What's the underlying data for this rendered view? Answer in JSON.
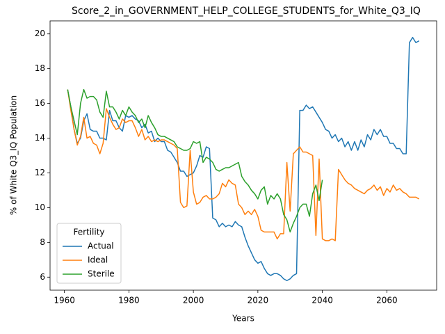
{
  "chart_data": {
    "type": "line",
    "title": "Score_2_in_GOVERNMENT_HELP_COLLEGE_STUDENTS_for_White_Q3_IQ",
    "xlabel": "Years",
    "ylabel": "% of White Q3_IQ Population",
    "x": [
      1961,
      1962,
      1963,
      1964,
      1965,
      1966,
      1967,
      1968,
      1969,
      1970,
      1971,
      1972,
      1973,
      1974,
      1975,
      1976,
      1977,
      1978,
      1979,
      1980,
      1981,
      1982,
      1983,
      1984,
      1985,
      1986,
      1987,
      1988,
      1989,
      1990,
      1991,
      1992,
      1993,
      1994,
      1995,
      1996,
      1997,
      1998,
      1999,
      2000,
      2001,
      2002,
      2003,
      2004,
      2005,
      2006,
      2007,
      2008,
      2009,
      2010,
      2011,
      2012,
      2013,
      2014,
      2015,
      2016,
      2017,
      2018,
      2019,
      2020,
      2021,
      2022,
      2023,
      2024,
      2025,
      2026,
      2027,
      2028,
      2029,
      2030,
      2031,
      2032,
      2033,
      2034,
      2035,
      2036,
      2037,
      2038,
      2039,
      2040,
      2041,
      2042,
      2043,
      2044,
      2045,
      2046,
      2047,
      2048,
      2049,
      2050,
      2051,
      2052,
      2053,
      2054,
      2055,
      2056,
      2057,
      2058,
      2059,
      2060,
      2061,
      2062,
      2063,
      2064,
      2065,
      2066,
      2067,
      2068,
      2069,
      2070
    ],
    "series": [
      {
        "name": "Actual",
        "color": "#1f77b4",
        "values": [
          16.8,
          15.8,
          14.5,
          13.7,
          14.0,
          15.0,
          15.4,
          14.5,
          14.4,
          14.4,
          14.0,
          14.0,
          13.9,
          15.6,
          15.0,
          15.0,
          14.6,
          14.4,
          15.3,
          15.2,
          15.3,
          15.1,
          15.0,
          14.6,
          14.8,
          14.3,
          14.4,
          13.8,
          14.0,
          13.8,
          13.8,
          13.3,
          13.2,
          12.9,
          12.6,
          12.1,
          12.1,
          11.8,
          11.9,
          12.0,
          12.4,
          13.0,
          12.9,
          13.5,
          13.4,
          9.4,
          9.3,
          8.9,
          9.1,
          8.9,
          9.0,
          8.9,
          9.2,
          9.0,
          8.9,
          8.3,
          7.8,
          7.4,
          7.0,
          6.8,
          6.9,
          6.5,
          6.2,
          6.1,
          6.2,
          6.2,
          6.1,
          5.9,
          5.8,
          5.9,
          6.1,
          6.2,
          15.6,
          15.6,
          15.9,
          15.7,
          15.8,
          15.5,
          15.2,
          14.9,
          14.5,
          14.4,
          14.0,
          14.2,
          13.8,
          14.0,
          13.5,
          13.8,
          13.3,
          13.8,
          13.3,
          13.9,
          13.5,
          14.2,
          13.9,
          14.5,
          14.2,
          14.5,
          14.1,
          14.1,
          13.7,
          13.7,
          13.4,
          13.4,
          13.1,
          13.1,
          19.5,
          19.8,
          19.5,
          19.6
        ]
      },
      {
        "name": "Ideal",
        "color": "#ff7f0e",
        "values": [
          16.8,
          15.6,
          14.5,
          13.6,
          14.1,
          15.2,
          14.0,
          14.1,
          13.7,
          13.6,
          13.1,
          13.7,
          15.7,
          15.2,
          14.8,
          14.5,
          14.6,
          15.1,
          14.9,
          15.0,
          15.0,
          14.6,
          14.1,
          14.5,
          13.9,
          14.1,
          13.8,
          13.9,
          13.8,
          13.9,
          13.9,
          13.8,
          13.7,
          13.6,
          13.4,
          10.3,
          10.0,
          10.1,
          13.3,
          10.9,
          10.2,
          10.3,
          10.6,
          10.7,
          10.5,
          10.5,
          10.6,
          10.8,
          11.4,
          11.2,
          11.6,
          11.4,
          11.3,
          10.2,
          10.0,
          9.6,
          9.8,
          9.6,
          9.9,
          9.5,
          8.7,
          8.6,
          8.6,
          8.6,
          8.6,
          8.2,
          8.5,
          8.5,
          12.6,
          9.8,
          13.1,
          13.3,
          13.5,
          13.2,
          13.2,
          13.1,
          13.0,
          8.4,
          12.8,
          8.2,
          8.1,
          8.1,
          8.2,
          8.1,
          12.2,
          11.9,
          11.6,
          11.4,
          11.3,
          11.1,
          11.0,
          10.9,
          10.8,
          11.0,
          11.1,
          11.3,
          11.0,
          11.2,
          10.7,
          11.1,
          10.9,
          11.3,
          11.0,
          11.1,
          10.9,
          10.8,
          10.6,
          10.6,
          10.6,
          10.5
        ]
      },
      {
        "name": "Sterile",
        "color": "#2ca02c",
        "values": [
          16.8,
          15.8,
          15.0,
          14.2,
          16.0,
          16.8,
          16.3,
          16.4,
          16.4,
          16.2,
          15.5,
          15.2,
          16.7,
          15.8,
          15.8,
          15.5,
          15.1,
          15.6,
          15.3,
          15.8,
          15.5,
          15.3,
          14.9,
          15.1,
          14.6,
          15.3,
          14.9,
          14.6,
          14.2,
          14.1,
          14.1,
          14.0,
          13.9,
          13.8,
          13.5,
          13.4,
          13.3,
          13.3,
          13.4,
          13.8,
          13.7,
          13.8,
          12.6,
          12.9,
          12.8,
          12.6,
          12.2,
          12.1,
          12.2,
          12.3,
          12.3,
          12.4,
          12.5,
          12.6,
          11.8,
          11.5,
          11.3,
          11.0,
          10.8,
          10.5,
          11.0,
          11.2,
          10.2,
          10.7,
          10.5,
          10.8,
          10.5,
          9.6,
          9.3,
          8.6,
          9.1,
          9.5,
          10.0,
          10.2,
          10.2,
          9.5,
          10.8,
          11.3,
          10.4,
          11.6,
          null,
          null,
          null,
          null,
          null,
          null,
          null,
          null,
          null,
          null,
          null,
          null,
          null,
          null,
          null,
          null,
          null,
          null,
          null,
          null,
          null,
          null,
          null,
          null,
          null,
          null,
          null,
          null,
          null,
          null
        ]
      }
    ],
    "xlim": [
      1955.55,
      2075.45
    ],
    "xticks": [
      1960,
      1980,
      2000,
      2020,
      2040,
      2060
    ],
    "ylim": [
      5.25,
      20.75
    ],
    "yticks": [
      6,
      8,
      10,
      12,
      14,
      16,
      18,
      20
    ],
    "legend_title": "Fertility",
    "legend_loc": "lower left"
  }
}
